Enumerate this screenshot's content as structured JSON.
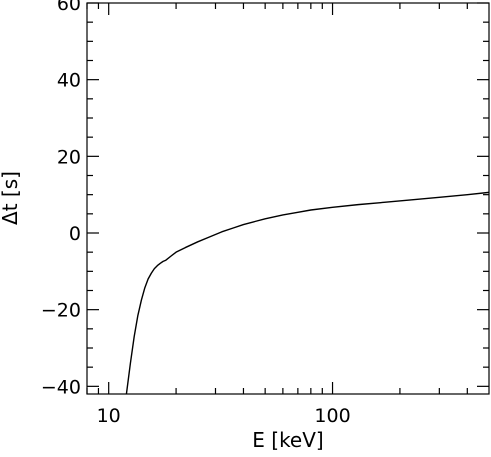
{
  "chart_data": {
    "type": "line",
    "title": "",
    "xlabel": "E [keV]",
    "ylabel": "Δt [s]",
    "xscale": "log",
    "xlim": [
      8,
      500
    ],
    "ylim": [
      -42,
      60
    ],
    "grid": false,
    "legend": "none",
    "x_ticks_major": [
      10,
      100
    ],
    "x_tick_labels": [
      "10",
      "100"
    ],
    "x_ticks_minor": [
      8,
      9,
      20,
      30,
      40,
      50,
      60,
      70,
      80,
      90,
      200,
      300,
      400
    ],
    "y_ticks_major": [
      -40,
      -20,
      0,
      20,
      40,
      60
    ],
    "y_tick_labels": [
      "−40",
      "−20",
      "0",
      "20",
      "40",
      "60"
    ],
    "y_ticks_minor": [
      -35,
      -30,
      -25,
      -15,
      -10,
      -5,
      5,
      10,
      15,
      25,
      30,
      35,
      45,
      50,
      55
    ],
    "line_color": "#000000",
    "series": [
      {
        "x": [
          12.0,
          12.5,
          13.0,
          13.5,
          14.0,
          14.5,
          15.0,
          15.5,
          16.0,
          16.5,
          17.0,
          17.5,
          18.0,
          19.0,
          20.0,
          22.0,
          25.0,
          28.0,
          32.0,
          36.0,
          40.0,
          45.0,
          50.0,
          60.0,
          70.0,
          80.0,
          100.0,
          130.0,
          170.0,
          220.0,
          300.0,
          400.0,
          500.0
        ],
        "y": [
          -42.0,
          -34.0,
          -27.0,
          -21.5,
          -17.5,
          -14.3,
          -12.0,
          -10.5,
          -9.3,
          -8.5,
          -7.9,
          -7.4,
          -7.1,
          -6.0,
          -5.0,
          -3.8,
          -2.3,
          -1.1,
          0.3,
          1.3,
          2.2,
          3.0,
          3.7,
          4.7,
          5.4,
          6.0,
          6.7,
          7.4,
          8.0,
          8.6,
          9.3,
          10.0,
          10.6
        ]
      }
    ]
  }
}
